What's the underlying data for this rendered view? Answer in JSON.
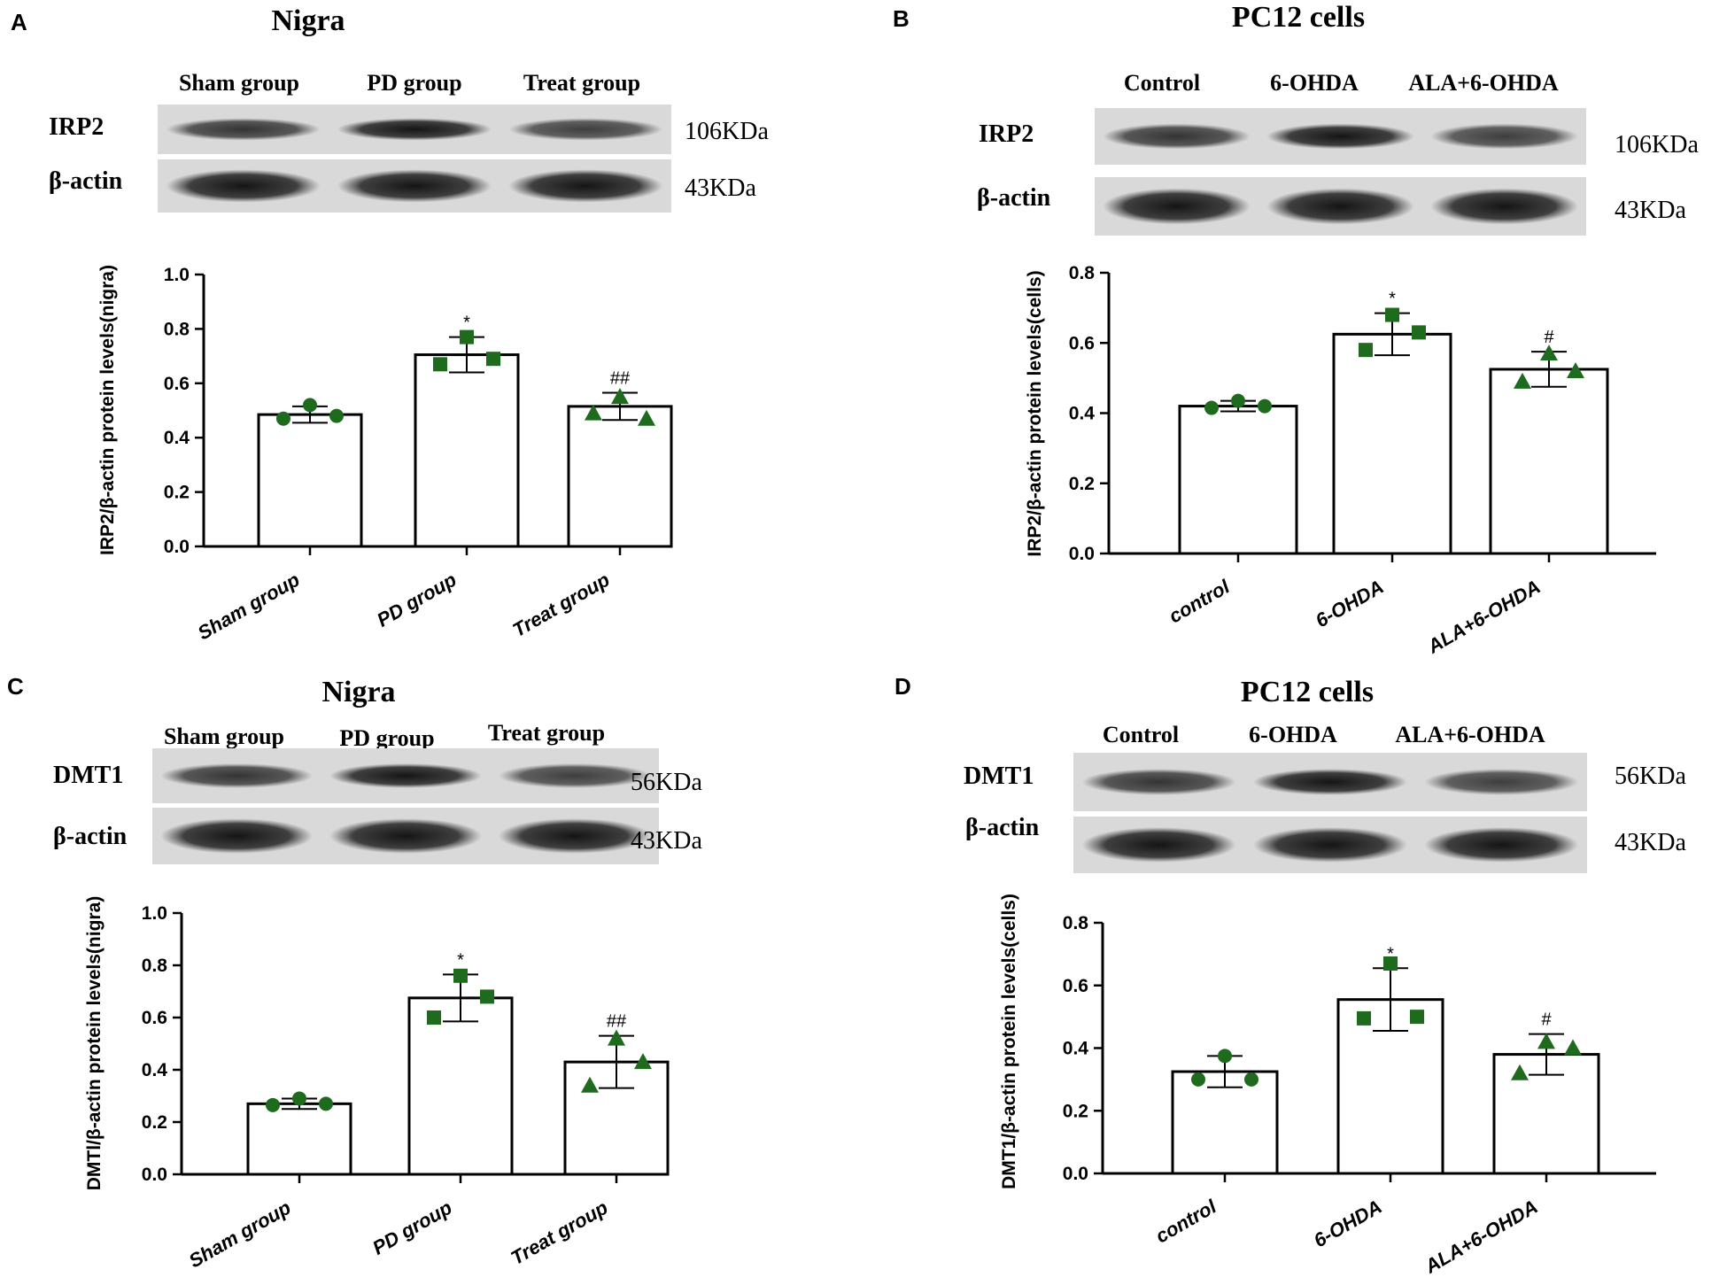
{
  "chart_data": [
    {
      "type": "bar",
      "panel": "A",
      "title": "Nigra",
      "blot": {
        "lanes": [
          "Sham group",
          "PD group",
          "Treat group"
        ],
        "proteins": [
          {
            "name": "IRP2",
            "kda": "106KDa"
          },
          {
            "name": "β-actin",
            "kda": "43KDa"
          }
        ]
      },
      "categories": [
        "Sham group",
        "PD group",
        "Treat group"
      ],
      "values": [
        0.485,
        0.705,
        0.515
      ],
      "errors": [
        0.03,
        0.065,
        0.05
      ],
      "points": [
        [
          0.47,
          0.52,
          0.48
        ],
        [
          0.67,
          0.77,
          0.69
        ],
        [
          0.49,
          0.55,
          0.47
        ]
      ],
      "markers": [
        "circle",
        "square",
        "triangle"
      ],
      "significance": [
        "",
        "*",
        "##"
      ],
      "ylabel": "IRP2/β-actin protein levels(nigra)",
      "ylim": [
        0,
        1.0
      ],
      "yticks": [
        "0.0",
        "0.2",
        "0.4",
        "0.6",
        "0.8",
        "1.0"
      ]
    },
    {
      "type": "bar",
      "panel": "B",
      "title": "PC12 cells",
      "blot": {
        "lanes": [
          "Control",
          "6-OHDA",
          "ALA+6-OHDA"
        ],
        "proteins": [
          {
            "name": "IRP2",
            "kda": "106KDa"
          },
          {
            "name": "β-actin",
            "kda": "43KDa"
          }
        ]
      },
      "categories": [
        "control",
        "6-OHDA",
        "ALA+6-OHDA"
      ],
      "values": [
        0.42,
        0.625,
        0.525
      ],
      "errors": [
        0.015,
        0.06,
        0.05
      ],
      "points": [
        [
          0.415,
          0.435,
          0.42
        ],
        [
          0.58,
          0.68,
          0.63
        ],
        [
          0.49,
          0.57,
          0.52
        ]
      ],
      "markers": [
        "circle",
        "square",
        "triangle"
      ],
      "significance": [
        "",
        "*",
        "#"
      ],
      "ylabel": "IRP2/β-actin protein levels(cells)",
      "ylim": [
        0,
        0.8
      ],
      "yticks": [
        "0.0",
        "0.2",
        "0.4",
        "0.6",
        "0.8"
      ]
    },
    {
      "type": "bar",
      "panel": "C",
      "title": "Nigra",
      "blot": {
        "lanes": [
          "Sham group",
          "PD group",
          "Treat group"
        ],
        "proteins": [
          {
            "name": "DMT1",
            "kda": "56KDa"
          },
          {
            "name": "β-actin",
            "kda": "43KDa"
          }
        ]
      },
      "categories": [
        "Sham group",
        "PD group",
        "Treat group"
      ],
      "values": [
        0.27,
        0.675,
        0.43
      ],
      "errors": [
        0.02,
        0.09,
        0.1
      ],
      "points": [
        [
          0.265,
          0.29,
          0.27
        ],
        [
          0.6,
          0.76,
          0.68
        ],
        [
          0.34,
          0.52,
          0.43
        ]
      ],
      "markers": [
        "circle",
        "square",
        "triangle"
      ],
      "significance": [
        "",
        "*",
        "##"
      ],
      "ylabel": "DMTl/β-actin protein levels(nigra)",
      "ylim": [
        0,
        1.0
      ],
      "yticks": [
        "0.0",
        "0.2",
        "0.4",
        "0.6",
        "0.8",
        "1.0"
      ]
    },
    {
      "type": "bar",
      "panel": "D",
      "title": "PC12 cells",
      "blot": {
        "lanes": [
          "Control",
          "6-OHDA",
          "ALA+6-OHDA"
        ],
        "proteins": [
          {
            "name": "DMT1",
            "kda": "56KDa"
          },
          {
            "name": "β-actin",
            "kda": "43KDa"
          }
        ]
      },
      "categories": [
        "control",
        "6-OHDA",
        "ALA+6-OHDA"
      ],
      "values": [
        0.325,
        0.555,
        0.38
      ],
      "errors": [
        0.05,
        0.1,
        0.065
      ],
      "points": [
        [
          0.3,
          0.375,
          0.3
        ],
        [
          0.495,
          0.67,
          0.5
        ],
        [
          0.32,
          0.42,
          0.4
        ]
      ],
      "markers": [
        "circle",
        "square",
        "triangle"
      ],
      "significance": [
        "",
        "*",
        "#"
      ],
      "ylabel": "DMT1/β-actin protein levels(cells)",
      "ylim": [
        0,
        0.8
      ],
      "yticks": [
        "0.0",
        "0.2",
        "0.4",
        "0.6",
        "0.8"
      ]
    }
  ],
  "colors": {
    "marker": "#1e6b1e",
    "bar_fill": "#ffffff",
    "bar_stroke": "#000000",
    "axis": "#000000"
  }
}
